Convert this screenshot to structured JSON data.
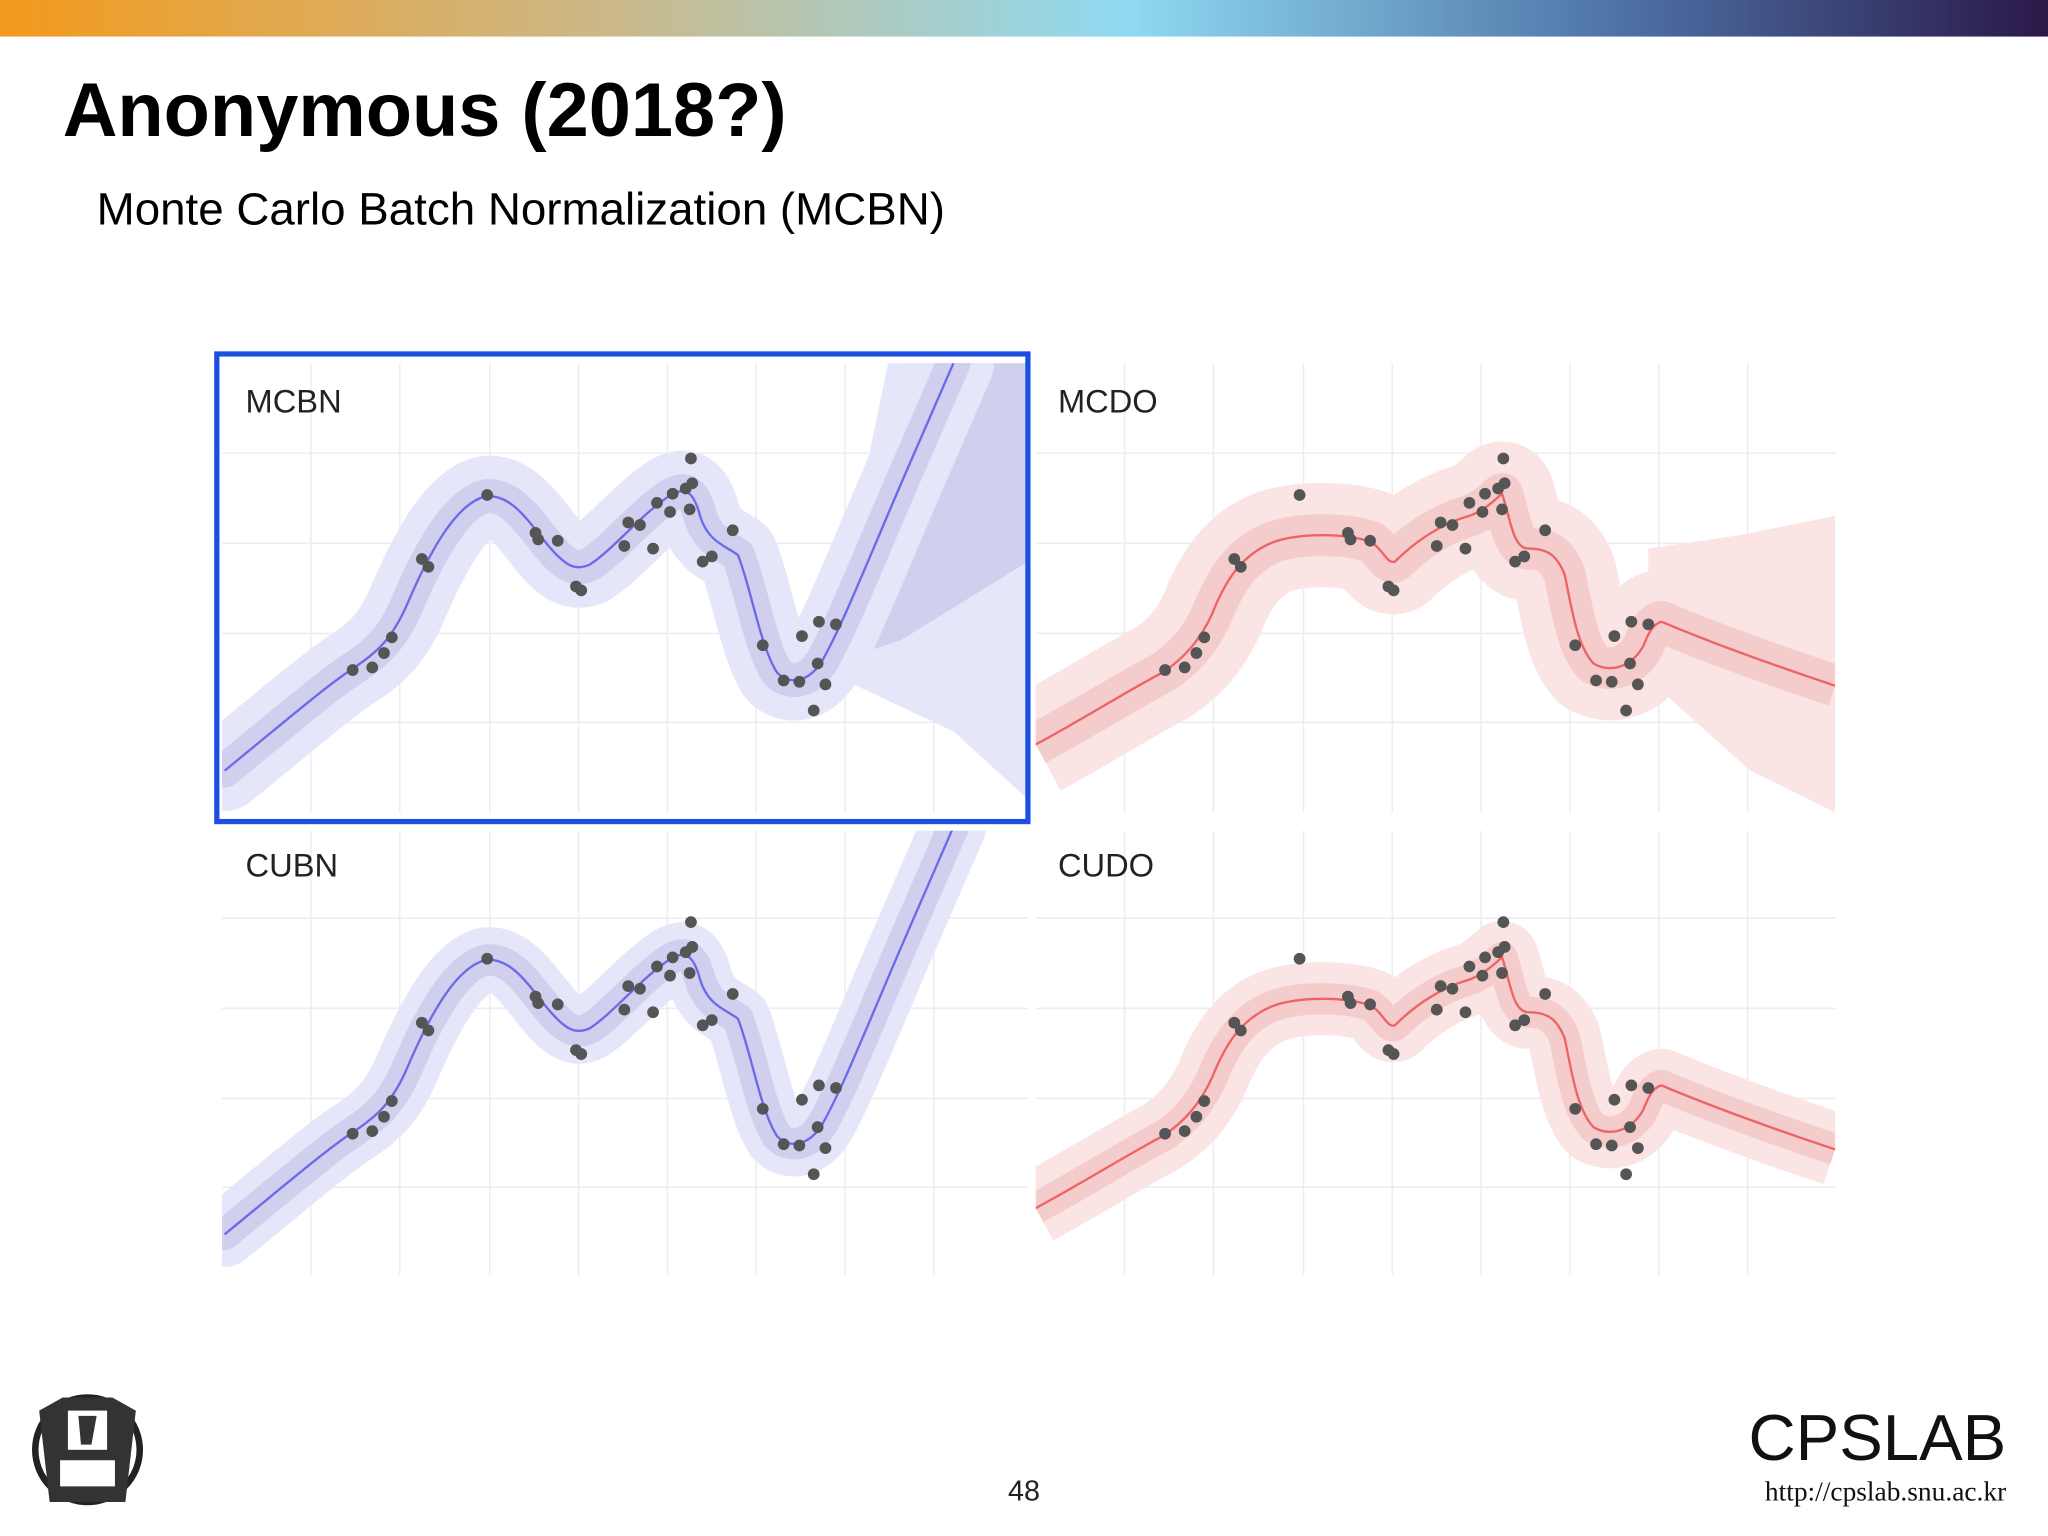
{
  "header": {
    "title": "Anonymous (2018?)",
    "subtitle": "Monte Carlo Batch Normalization (MCBN)"
  },
  "panels": [
    {
      "label": "MCBN"
    },
    {
      "label": "MCDO"
    },
    {
      "label": "CUBN"
    },
    {
      "label": "CUDO"
    }
  ],
  "footer": {
    "page_number": "48",
    "brand": "CPSLAB",
    "url": "http://cpslab.snu.ac.kr"
  }
}
